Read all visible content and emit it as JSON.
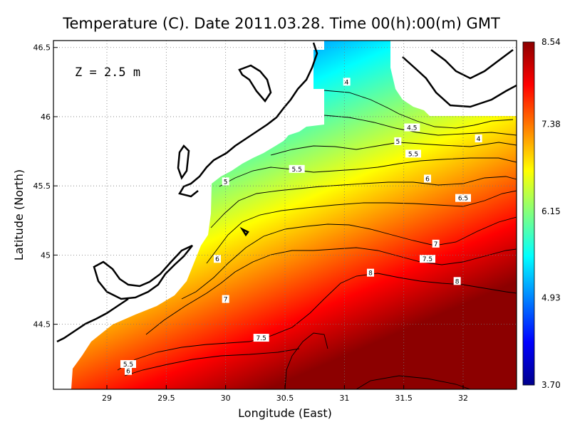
{
  "chart_data": {
    "type": "heatmap",
    "title": "Temperature (C). Date 2011.03.28. Time 00(h):00(m) GMT",
    "xlabel": "Longitude (East)",
    "ylabel": "Latitude (North)",
    "xlim": [
      28.55,
      32.45
    ],
    "ylim": [
      44.03,
      46.55
    ],
    "x_ticks": [
      "29",
      "29.5",
      "30",
      "30.5",
      "31",
      "31.5",
      "32"
    ],
    "x_tick_values": [
      29,
      29.5,
      30,
      30.5,
      31,
      31.5,
      32
    ],
    "y_ticks": [
      "44.5",
      "45",
      "45.5",
      "46",
      "46.5"
    ],
    "y_tick_values": [
      44.5,
      45,
      45.5,
      46,
      46.5
    ],
    "grid": true,
    "annotation": "Z = 2.5 m",
    "colorbar": {
      "min": 3.7,
      "max": 8.54,
      "tick_labels": [
        "8.54",
        "7.38",
        "6.15",
        "4.93",
        "3.70"
      ],
      "tick_values": [
        8.54,
        7.38,
        6.15,
        4.93,
        3.7
      ],
      "colors": [
        "#00008c",
        "#0000ff",
        "#0080ff",
        "#00ffff",
        "#80ff80",
        "#ffff00",
        "#ff8000",
        "#ff0000",
        "#8c0000"
      ]
    },
    "contour_labels": [
      {
        "text": "4",
        "lon": 31.02,
        "lat": 46.25
      },
      {
        "text": "4",
        "lon": 32.13,
        "lat": 45.84
      },
      {
        "text": "4.5",
        "lon": 31.57,
        "lat": 45.92
      },
      {
        "text": "5",
        "lon": 31.45,
        "lat": 45.82
      },
      {
        "text": "5",
        "lon": 30.0,
        "lat": 45.53
      },
      {
        "text": "5.5",
        "lon": 31.58,
        "lat": 45.73
      },
      {
        "text": "5.5",
        "lon": 30.6,
        "lat": 45.62
      },
      {
        "text": "5.5",
        "lon": 29.18,
        "lat": 44.21
      },
      {
        "text": "6",
        "lon": 31.7,
        "lat": 45.55
      },
      {
        "text": "6",
        "lon": 29.93,
        "lat": 44.97
      },
      {
        "text": "6",
        "lon": 29.18,
        "lat": 44.16
      },
      {
        "text": "6.5",
        "lon": 32.0,
        "lat": 45.41
      },
      {
        "text": "7",
        "lon": 31.77,
        "lat": 45.08
      },
      {
        "text": "7",
        "lon": 30.0,
        "lat": 44.68
      },
      {
        "text": "7.5",
        "lon": 31.7,
        "lat": 44.97
      },
      {
        "text": "7.5",
        "lon": 30.3,
        "lat": 44.4
      },
      {
        "text": "8",
        "lon": 31.22,
        "lat": 44.87
      },
      {
        "text": "8",
        "lon": 31.95,
        "lat": 44.81
      }
    ]
  }
}
